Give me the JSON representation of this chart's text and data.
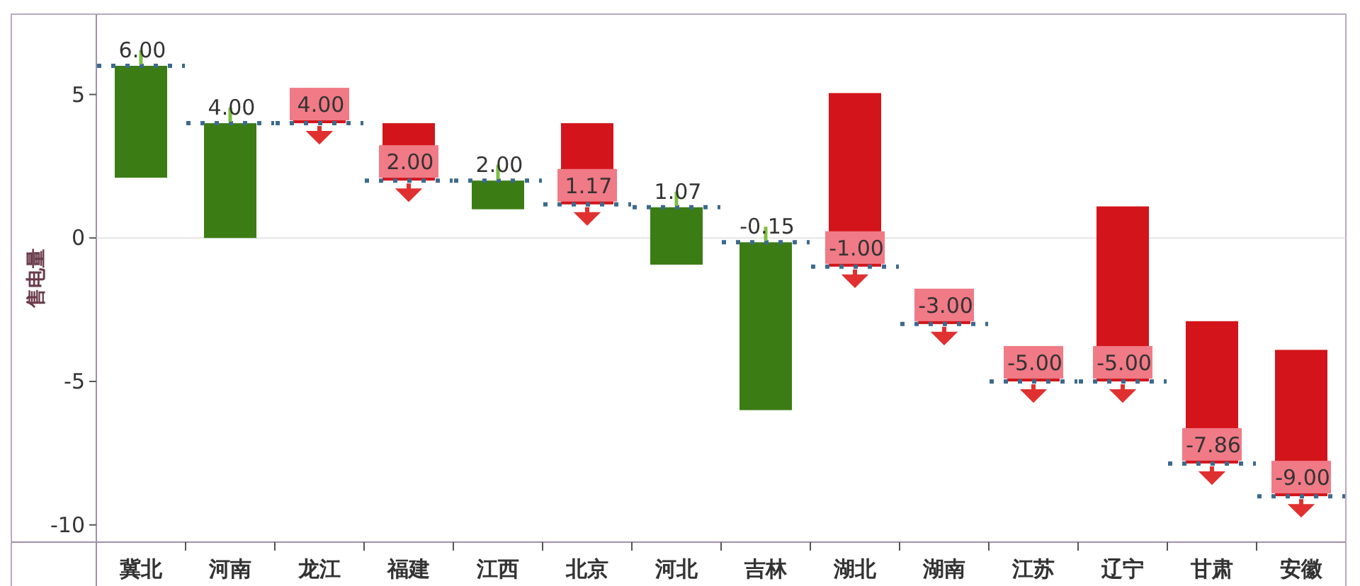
{
  "chart_data": {
    "type": "bar",
    "ylabel": "售电量",
    "categories": [
      "冀北",
      "河南",
      "龙江",
      "福建",
      "江西",
      "北京",
      "河北",
      "吉林",
      "湖北",
      "湖南",
      "江苏",
      "辽宁",
      "甘肃",
      "安徽"
    ],
    "base": [
      2.1,
      0,
      4.4,
      4,
      1,
      4,
      -0.93,
      -6,
      5.05,
      -2.2,
      -4.4,
      1.1,
      -2.9,
      -3.9
    ],
    "values": [
      3.9,
      4,
      -0.4,
      -2,
      1,
      -2.83,
      2,
      5.85,
      -6.05,
      -0.8,
      -0.6,
      -6.1,
      -4.96,
      -5.1
    ],
    "value_labels": [
      "6.00",
      "4.00",
      "4.00",
      "2.00",
      "2.00",
      "1.17",
      "1.07",
      "-0.15",
      "-1.00",
      "-3.00",
      "-5.00",
      "-5.00",
      "-7.86",
      "-9.00"
    ],
    "colors": [
      "#3b7d14",
      "#3b7d14",
      "#d3141a",
      "#d3141a",
      "#3b7d14",
      "#d3141a",
      "#3b7d14",
      "#3b7d14",
      "#d3141a",
      "#d3141a",
      "#d3141a",
      "#d3141a",
      "#d3141a",
      "#d3141a"
    ],
    "ylim": [
      -10.6,
      7.8
    ],
    "yticks": [
      5,
      0,
      -5,
      -10
    ]
  }
}
